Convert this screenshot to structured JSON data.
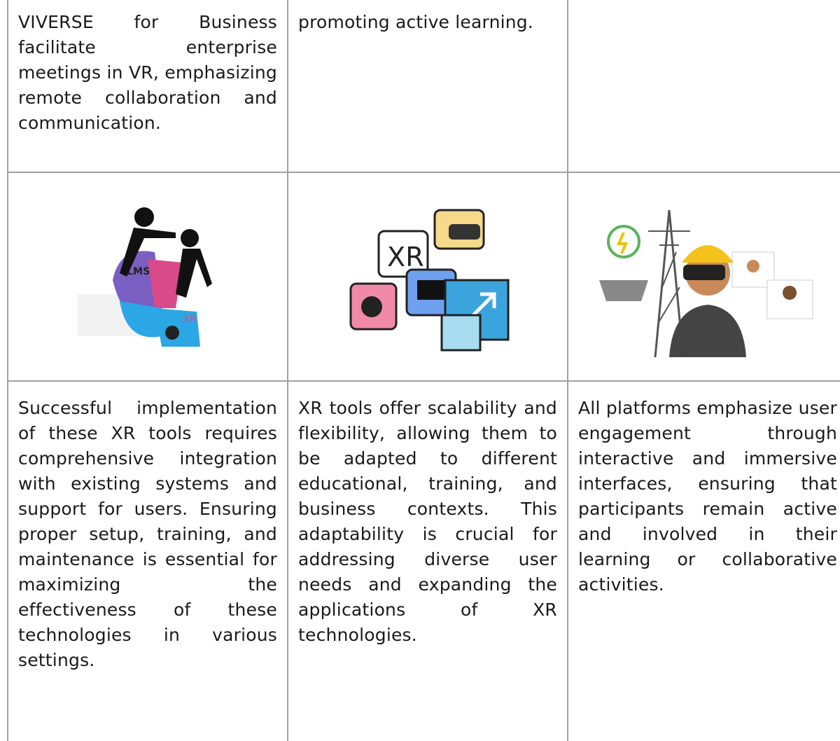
{
  "table": {
    "rows": [
      [
        "VIVERSE for Business facilitate enterprise meetings in VR, emphasizing remote collaboration and communication.",
        "promoting active learning."
      ],
      [],
      [
        "Successful implementation of these XR tools requires comprehensive integration with existing systems and support for users. Ensuring proper setup, training, and maintenance is essential for maximizing the effectiveness of these technologies in various settings.",
        "XR tools offer scalability and flexibility, allowing them to be adapted to different educational, training, and business contexts. This adaptability is crucial for addressing diverse user needs and expanding the applications of XR technologies.",
        "All platforms emphasize user engagement through interactive and immersive interfaces, ensuring that participants remain active and involved in their learning or collaborative activities."
      ]
    ]
  }
}
